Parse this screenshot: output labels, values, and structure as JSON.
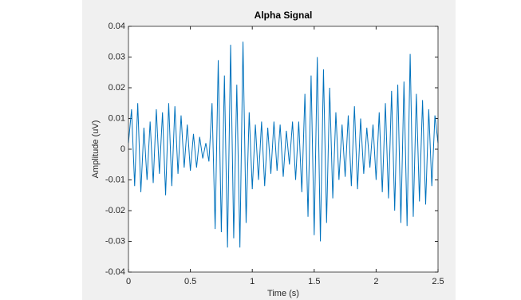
{
  "chart_data": {
    "type": "line",
    "title": "Alpha Signal",
    "x_label": "Time (s)",
    "y_label": "Amplitude (uV)",
    "x": [
      0,
      0.025,
      0.05,
      0.075,
      0.1,
      0.125,
      0.15,
      0.175,
      0.2,
      0.225,
      0.25,
      0.275,
      0.3,
      0.325,
      0.35,
      0.375,
      0.4,
      0.425,
      0.45,
      0.475,
      0.5,
      0.525,
      0.55,
      0.575,
      0.6,
      0.625,
      0.65,
      0.675,
      0.7,
      0.725,
      0.75,
      0.775,
      0.8,
      0.825,
      0.85,
      0.875,
      0.9,
      0.925,
      0.95,
      0.975,
      1.0,
      1.025,
      1.05,
      1.075,
      1.1,
      1.125,
      1.15,
      1.175,
      1.2,
      1.225,
      1.25,
      1.275,
      1.3,
      1.325,
      1.35,
      1.375,
      1.4,
      1.425,
      1.45,
      1.475,
      1.5,
      1.525,
      1.55,
      1.575,
      1.6,
      1.625,
      1.65,
      1.675,
      1.7,
      1.725,
      1.75,
      1.775,
      1.8,
      1.825,
      1.85,
      1.875,
      1.9,
      1.925,
      1.95,
      1.975,
      2.0,
      2.025,
      2.05,
      2.075,
      2.1,
      2.125,
      2.15,
      2.175,
      2.2,
      2.225,
      2.25,
      2.275,
      2.3,
      2.325,
      2.35,
      2.375,
      2.4,
      2.425,
      2.45,
      2.475,
      2.5
    ],
    "values": [
      0.002,
      0.013,
      -0.012,
      0.015,
      -0.014,
      0.007,
      -0.01,
      0.009,
      -0.011,
      0.013,
      -0.008,
      0.012,
      -0.015,
      0.015,
      -0.012,
      0.014,
      -0.008,
      0.011,
      -0.006,
      0.008,
      -0.007,
      0.005,
      -0.006,
      0.004,
      -0.003,
      0.002,
      -0.004,
      0.015,
      -0.026,
      0.029,
      -0.027,
      0.024,
      -0.032,
      0.034,
      -0.029,
      0.021,
      -0.032,
      0.035,
      -0.024,
      0.012,
      -0.013,
      0.008,
      -0.01,
      0.009,
      -0.012,
      0.007,
      -0.008,
      0.009,
      -0.007,
      0.008,
      -0.009,
      0.006,
      -0.005,
      0.009,
      -0.01,
      0.009,
      -0.014,
      0.018,
      -0.022,
      0.024,
      -0.028,
      0.03,
      -0.03,
      0.026,
      -0.024,
      0.02,
      -0.016,
      0.012,
      -0.01,
      0.008,
      -0.009,
      0.011,
      -0.012,
      0.014,
      -0.013,
      0.01,
      -0.008,
      0.007,
      -0.006,
      0.008,
      -0.01,
      0.012,
      -0.014,
      0.015,
      -0.016,
      0.019,
      -0.02,
      0.021,
      -0.024,
      0.022,
      -0.025,
      0.031,
      -0.022,
      0.018,
      -0.017,
      0.016,
      -0.018,
      0.013,
      -0.012,
      0.011,
      0.002
    ],
    "color": "#0072bd",
    "xlim": [
      0,
      2.5
    ],
    "xticks": [
      0,
      0.5,
      1,
      1.5,
      2,
      2.5
    ],
    "ylim": [
      -0.04,
      0.04
    ],
    "yticks": [
      -0.04,
      -0.03,
      -0.02,
      -0.01,
      0,
      0.01,
      0.02,
      0.03,
      0.04
    ],
    "grid": false
  }
}
